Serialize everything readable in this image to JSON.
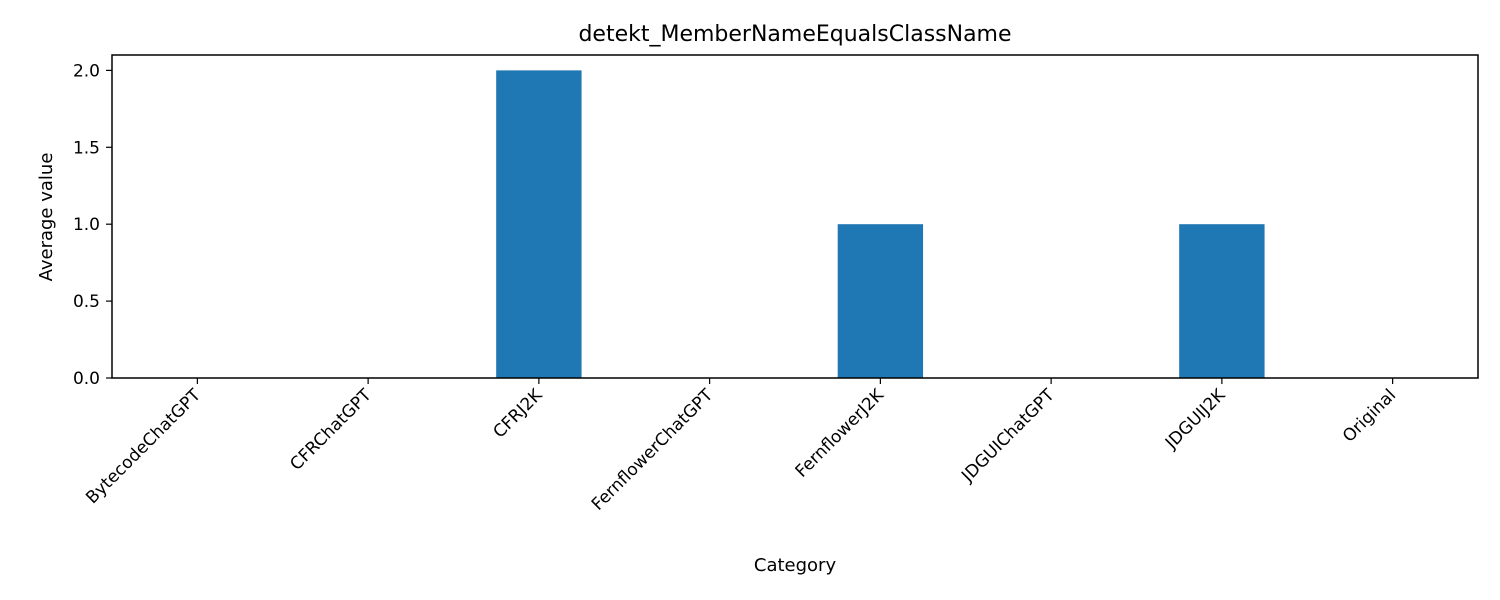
{
  "chart_data": {
    "type": "bar",
    "title": "detekt_MemberNameEqualsClassName",
    "xlabel": "Category",
    "ylabel": "Average value",
    "categories": [
      "BytecodeChatGPT",
      "CFRChatGPT",
      "CFRJ2K",
      "FernflowerChatGPT",
      "FernflowerJ2K",
      "JDGUIChatGPT",
      "JDGUIJ2K",
      "Original"
    ],
    "values": [
      0,
      0,
      2,
      0,
      1,
      0,
      1,
      0
    ],
    "ylim": [
      0,
      2.1
    ],
    "yticks": [
      0.0,
      0.5,
      1.0,
      1.5,
      2.0
    ],
    "ytick_labels": [
      "0.0",
      "0.5",
      "1.0",
      "1.5",
      "2.0"
    ],
    "grid": false,
    "legend": "none",
    "bar_color": "#1f77b4"
  }
}
